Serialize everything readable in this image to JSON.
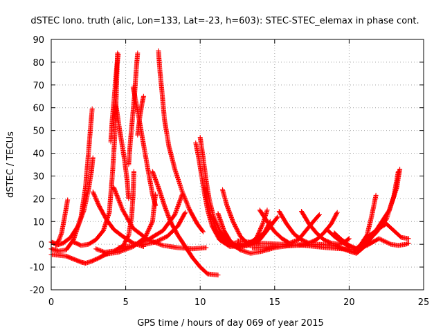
{
  "chart_data": {
    "type": "scatter",
    "title": "dSTEC Iono. truth (alic, Lon=133, Lat=-23, h=603): STEC-STEC_elemax in phase cont.",
    "xlabel": "GPS time / hours of day 069 of year 2015",
    "ylabel": "dSTEC  / TECUs",
    "xlim": [
      0,
      25
    ],
    "ylim": [
      -20,
      90
    ],
    "xticks": [
      0,
      5,
      10,
      15,
      20,
      25
    ],
    "yticks": [
      -20,
      -10,
      0,
      10,
      20,
      30,
      40,
      50,
      60,
      70,
      80,
      90
    ],
    "grid": true,
    "marker": "plus",
    "color": "#ff0000",
    "arcs": [
      [
        [
          0.0,
          -4.5
        ],
        [
          0.5,
          -4.8
        ],
        [
          1.0,
          -5.2
        ],
        [
          1.5,
          -6.5
        ],
        [
          2.0,
          -7.8
        ],
        [
          2.3,
          -8.3
        ],
        [
          2.7,
          -7.5
        ],
        [
          3.2,
          -6.0
        ],
        [
          3.8,
          -4.0
        ]
      ],
      [
        [
          0.0,
          1.0
        ],
        [
          0.3,
          0.3
        ],
        [
          0.5,
          1.5
        ],
        [
          0.7,
          5.0
        ],
        [
          0.9,
          12.0
        ],
        [
          1.1,
          19.5
        ]
      ],
      [
        [
          0.0,
          -2.0
        ],
        [
          0.5,
          -3.0
        ],
        [
          1.0,
          -2.5
        ],
        [
          1.5,
          2.0
        ],
        [
          2.0,
          12.0
        ],
        [
          2.3,
          25.0
        ],
        [
          2.5,
          40.0
        ],
        [
          2.65,
          52.0
        ],
        [
          2.75,
          59.5
        ]
      ],
      [
        [
          0.3,
          -0.5
        ],
        [
          0.8,
          0.5
        ],
        [
          1.3,
          3.0
        ],
        [
          1.8,
          8.0
        ],
        [
          2.2,
          15.0
        ],
        [
          2.5,
          24.0
        ],
        [
          2.7,
          32.0
        ],
        [
          2.8,
          38.0
        ]
      ],
      [
        [
          4.0,
          45.0
        ],
        [
          4.1,
          55.0
        ],
        [
          4.2,
          62.0
        ],
        [
          4.3,
          70.0
        ],
        [
          4.4,
          78.0
        ],
        [
          4.5,
          83.5
        ]
      ],
      [
        [
          1.5,
          1.0
        ],
        [
          2.0,
          -0.5
        ],
        [
          2.5,
          0.0
        ],
        [
          3.0,
          2.0
        ],
        [
          3.5,
          6.0
        ],
        [
          3.9,
          14.0
        ],
        [
          4.1,
          30.0
        ],
        [
          4.25,
          45.0
        ],
        [
          4.35,
          62.0
        ],
        [
          4.45,
          84.0
        ]
      ],
      [
        [
          2.8,
          23.0
        ],
        [
          3.2,
          17.0
        ],
        [
          3.7,
          11.0
        ],
        [
          4.2,
          6.5
        ],
        [
          4.8,
          3.5
        ],
        [
          5.5,
          0.5
        ],
        [
          6.2,
          -1.0
        ]
      ],
      [
        [
          4.3,
          63.0
        ],
        [
          4.6,
          50.0
        ],
        [
          4.9,
          38.0
        ],
        [
          5.1,
          28.0
        ],
        [
          5.2,
          20.0
        ]
      ],
      [
        [
          5.2,
          35.0
        ],
        [
          5.3,
          44.0
        ],
        [
          5.45,
          55.0
        ],
        [
          5.6,
          66.0
        ],
        [
          5.7,
          76.0
        ],
        [
          5.8,
          84.0
        ]
      ],
      [
        [
          3.0,
          -2.0
        ],
        [
          3.6,
          -3.5
        ],
        [
          4.2,
          -3.0
        ],
        [
          4.8,
          -1.0
        ],
        [
          5.2,
          4.0
        ],
        [
          5.4,
          12.0
        ],
        [
          5.5,
          22.0
        ],
        [
          5.55,
          32.0
        ]
      ],
      [
        [
          5.5,
          69.0
        ],
        [
          5.9,
          55.0
        ],
        [
          6.3,
          40.0
        ],
        [
          6.6,
          29.0
        ],
        [
          6.8,
          22.0
        ],
        [
          7.0,
          17.0
        ]
      ],
      [
        [
          4.2,
          25.0
        ],
        [
          4.8,
          15.0
        ],
        [
          5.5,
          7.0
        ],
        [
          6.5,
          2.0
        ],
        [
          7.5,
          -0.5
        ],
        [
          8.5,
          -1.5
        ],
        [
          9.5,
          -2.0
        ],
        [
          10.4,
          -1.5
        ]
      ],
      [
        [
          7.2,
          85.0
        ],
        [
          7.3,
          76.0
        ],
        [
          7.45,
          66.0
        ],
        [
          7.6,
          55.0
        ],
        [
          7.9,
          43.0
        ],
        [
          8.3,
          33.0
        ],
        [
          8.8,
          23.0
        ],
        [
          9.3,
          15.0
        ],
        [
          9.8,
          9.0
        ],
        [
          10.2,
          5.5
        ]
      ],
      [
        [
          5.8,
          48.0
        ],
        [
          5.95,
          56.0
        ],
        [
          6.1,
          62.0
        ],
        [
          6.2,
          65.0
        ]
      ],
      [
        [
          3.5,
          -4.5
        ],
        [
          4.5,
          -3.5
        ],
        [
          5.5,
          -1.0
        ],
        [
          6.3,
          3.0
        ],
        [
          6.8,
          10.0
        ],
        [
          7.0,
          22.0
        ]
      ],
      [
        [
          6.8,
          32.0
        ],
        [
          7.2,
          25.0
        ],
        [
          7.6,
          17.0
        ],
        [
          8.0,
          10.0
        ],
        [
          8.5,
          4.0
        ],
        [
          9.0,
          -1.0
        ],
        [
          9.5,
          -6.0
        ],
        [
          10.0,
          -10.0
        ],
        [
          10.5,
          -13.0
        ],
        [
          11.2,
          -13.5
        ]
      ],
      [
        [
          4.5,
          -1.5
        ],
        [
          5.5,
          -0.5
        ],
        [
          6.5,
          2.0
        ],
        [
          7.5,
          6.0
        ],
        [
          8.3,
          13.0
        ],
        [
          8.8,
          22.0
        ]
      ],
      [
        [
          6.0,
          -0.5
        ],
        [
          7.0,
          1.0
        ],
        [
          7.8,
          3.5
        ],
        [
          8.5,
          8.0
        ],
        [
          9.0,
          14.0
        ]
      ],
      [
        [
          9.7,
          44.5
        ],
        [
          9.9,
          38.0
        ],
        [
          10.1,
          30.0
        ],
        [
          10.3,
          22.0
        ],
        [
          10.5,
          15.0
        ],
        [
          10.8,
          8.0
        ],
        [
          11.3,
          2.0
        ],
        [
          12.0,
          -1.0
        ],
        [
          13.0,
          -0.5
        ],
        [
          14.0,
          0.5
        ]
      ],
      [
        [
          10.0,
          47.0
        ],
        [
          10.2,
          38.0
        ],
        [
          10.4,
          28.0
        ],
        [
          10.6,
          20.0
        ],
        [
          10.9,
          12.0
        ],
        [
          11.4,
          5.0
        ],
        [
          12.0,
          1.0
        ],
        [
          12.8,
          -0.5
        ],
        [
          13.6,
          1.5
        ],
        [
          14.3,
          5.0
        ],
        [
          14.7,
          10.0
        ]
      ],
      [
        [
          10.3,
          25.0
        ],
        [
          10.7,
          13.0
        ],
        [
          11.2,
          5.0
        ],
        [
          11.8,
          0.5
        ],
        [
          12.5,
          -1.5
        ],
        [
          13.2,
          -0.5
        ],
        [
          13.8,
          3.0
        ],
        [
          14.2,
          9.0
        ],
        [
          14.5,
          15.0
        ]
      ],
      [
        [
          11.5,
          24.0
        ],
        [
          11.8,
          17.0
        ],
        [
          12.2,
          10.0
        ],
        [
          12.7,
          3.5
        ],
        [
          13.3,
          -0.5
        ],
        [
          14.0,
          2.0
        ],
        [
          14.6,
          7.0
        ],
        [
          15.2,
          12.0
        ]
      ],
      [
        [
          11.2,
          13.5
        ],
        [
          11.6,
          6.0
        ],
        [
          12.1,
          0.5
        ],
        [
          12.7,
          -2.5
        ],
        [
          13.4,
          -4.0
        ],
        [
          14.2,
          -3.0
        ],
        [
          15.0,
          -1.5
        ],
        [
          16.0,
          -0.5
        ],
        [
          17.0,
          0.0
        ]
      ],
      [
        [
          14.0,
          15.0
        ],
        [
          14.5,
          10.0
        ],
        [
          15.0,
          5.5
        ],
        [
          15.5,
          2.5
        ],
        [
          16.0,
          0.5
        ],
        [
          16.6,
          2.0
        ],
        [
          17.1,
          6.0
        ],
        [
          17.6,
          10.0
        ],
        [
          18.0,
          13.0
        ]
      ],
      [
        [
          15.3,
          14.5
        ],
        [
          15.8,
          9.0
        ],
        [
          16.3,
          4.5
        ],
        [
          16.8,
          2.0
        ],
        [
          17.3,
          0.5
        ],
        [
          17.8,
          2.0
        ],
        [
          18.3,
          5.0
        ],
        [
          18.8,
          9.0
        ],
        [
          19.2,
          14.0
        ]
      ],
      [
        [
          16.8,
          14.5
        ],
        [
          17.3,
          9.0
        ],
        [
          17.8,
          5.0
        ],
        [
          18.3,
          2.0
        ],
        [
          18.8,
          0.5
        ],
        [
          19.3,
          0.0
        ],
        [
          19.7,
          1.0
        ],
        [
          20.0,
          2.5
        ]
      ],
      [
        [
          12.5,
          1.5
        ],
        [
          14.0,
          0.5
        ],
        [
          15.5,
          0.0
        ],
        [
          17.0,
          -0.5
        ],
        [
          18.5,
          -1.5
        ],
        [
          19.5,
          -2.0
        ],
        [
          20.4,
          -2.5
        ],
        [
          20.8,
          0.0
        ],
        [
          21.2,
          4.0
        ],
        [
          21.5,
          12.0
        ],
        [
          21.8,
          21.5
        ]
      ],
      [
        [
          13.5,
          -1.5
        ],
        [
          15.0,
          -1.0
        ],
        [
          16.5,
          -0.5
        ],
        [
          18.0,
          0.0
        ],
        [
          19.0,
          -0.5
        ],
        [
          20.0,
          -3.0
        ],
        [
          20.5,
          -4.0
        ],
        [
          21.2,
          0.0
        ],
        [
          22.0,
          8.0
        ],
        [
          22.7,
          15.0
        ],
        [
          23.2,
          25.0
        ],
        [
          23.4,
          33.0
        ]
      ],
      [
        [
          18.5,
          6.5
        ],
        [
          19.0,
          3.5
        ],
        [
          19.5,
          1.0
        ],
        [
          20.0,
          -1.0
        ],
        [
          20.5,
          -2.0
        ],
        [
          21.0,
          0.0
        ],
        [
          21.8,
          5.0
        ],
        [
          22.5,
          11.0
        ],
        [
          23.0,
          21.0
        ],
        [
          23.3,
          32.0
        ]
      ],
      [
        [
          21.0,
          2.0
        ],
        [
          21.5,
          4.5
        ],
        [
          22.0,
          7.0
        ],
        [
          22.5,
          9.0
        ],
        [
          23.0,
          6.0
        ],
        [
          23.5,
          3.0
        ],
        [
          24.0,
          2.5
        ]
      ],
      [
        [
          19.0,
          5.0
        ],
        [
          19.5,
          2.0
        ],
        [
          20.0,
          -0.5
        ],
        [
          20.5,
          -2.0
        ],
        [
          21.2,
          -0.5
        ],
        [
          22.0,
          2.5
        ],
        [
          22.8,
          0.0
        ],
        [
          23.3,
          -0.5
        ],
        [
          23.8,
          0.0
        ],
        [
          24.0,
          0.5
        ]
      ]
    ]
  }
}
